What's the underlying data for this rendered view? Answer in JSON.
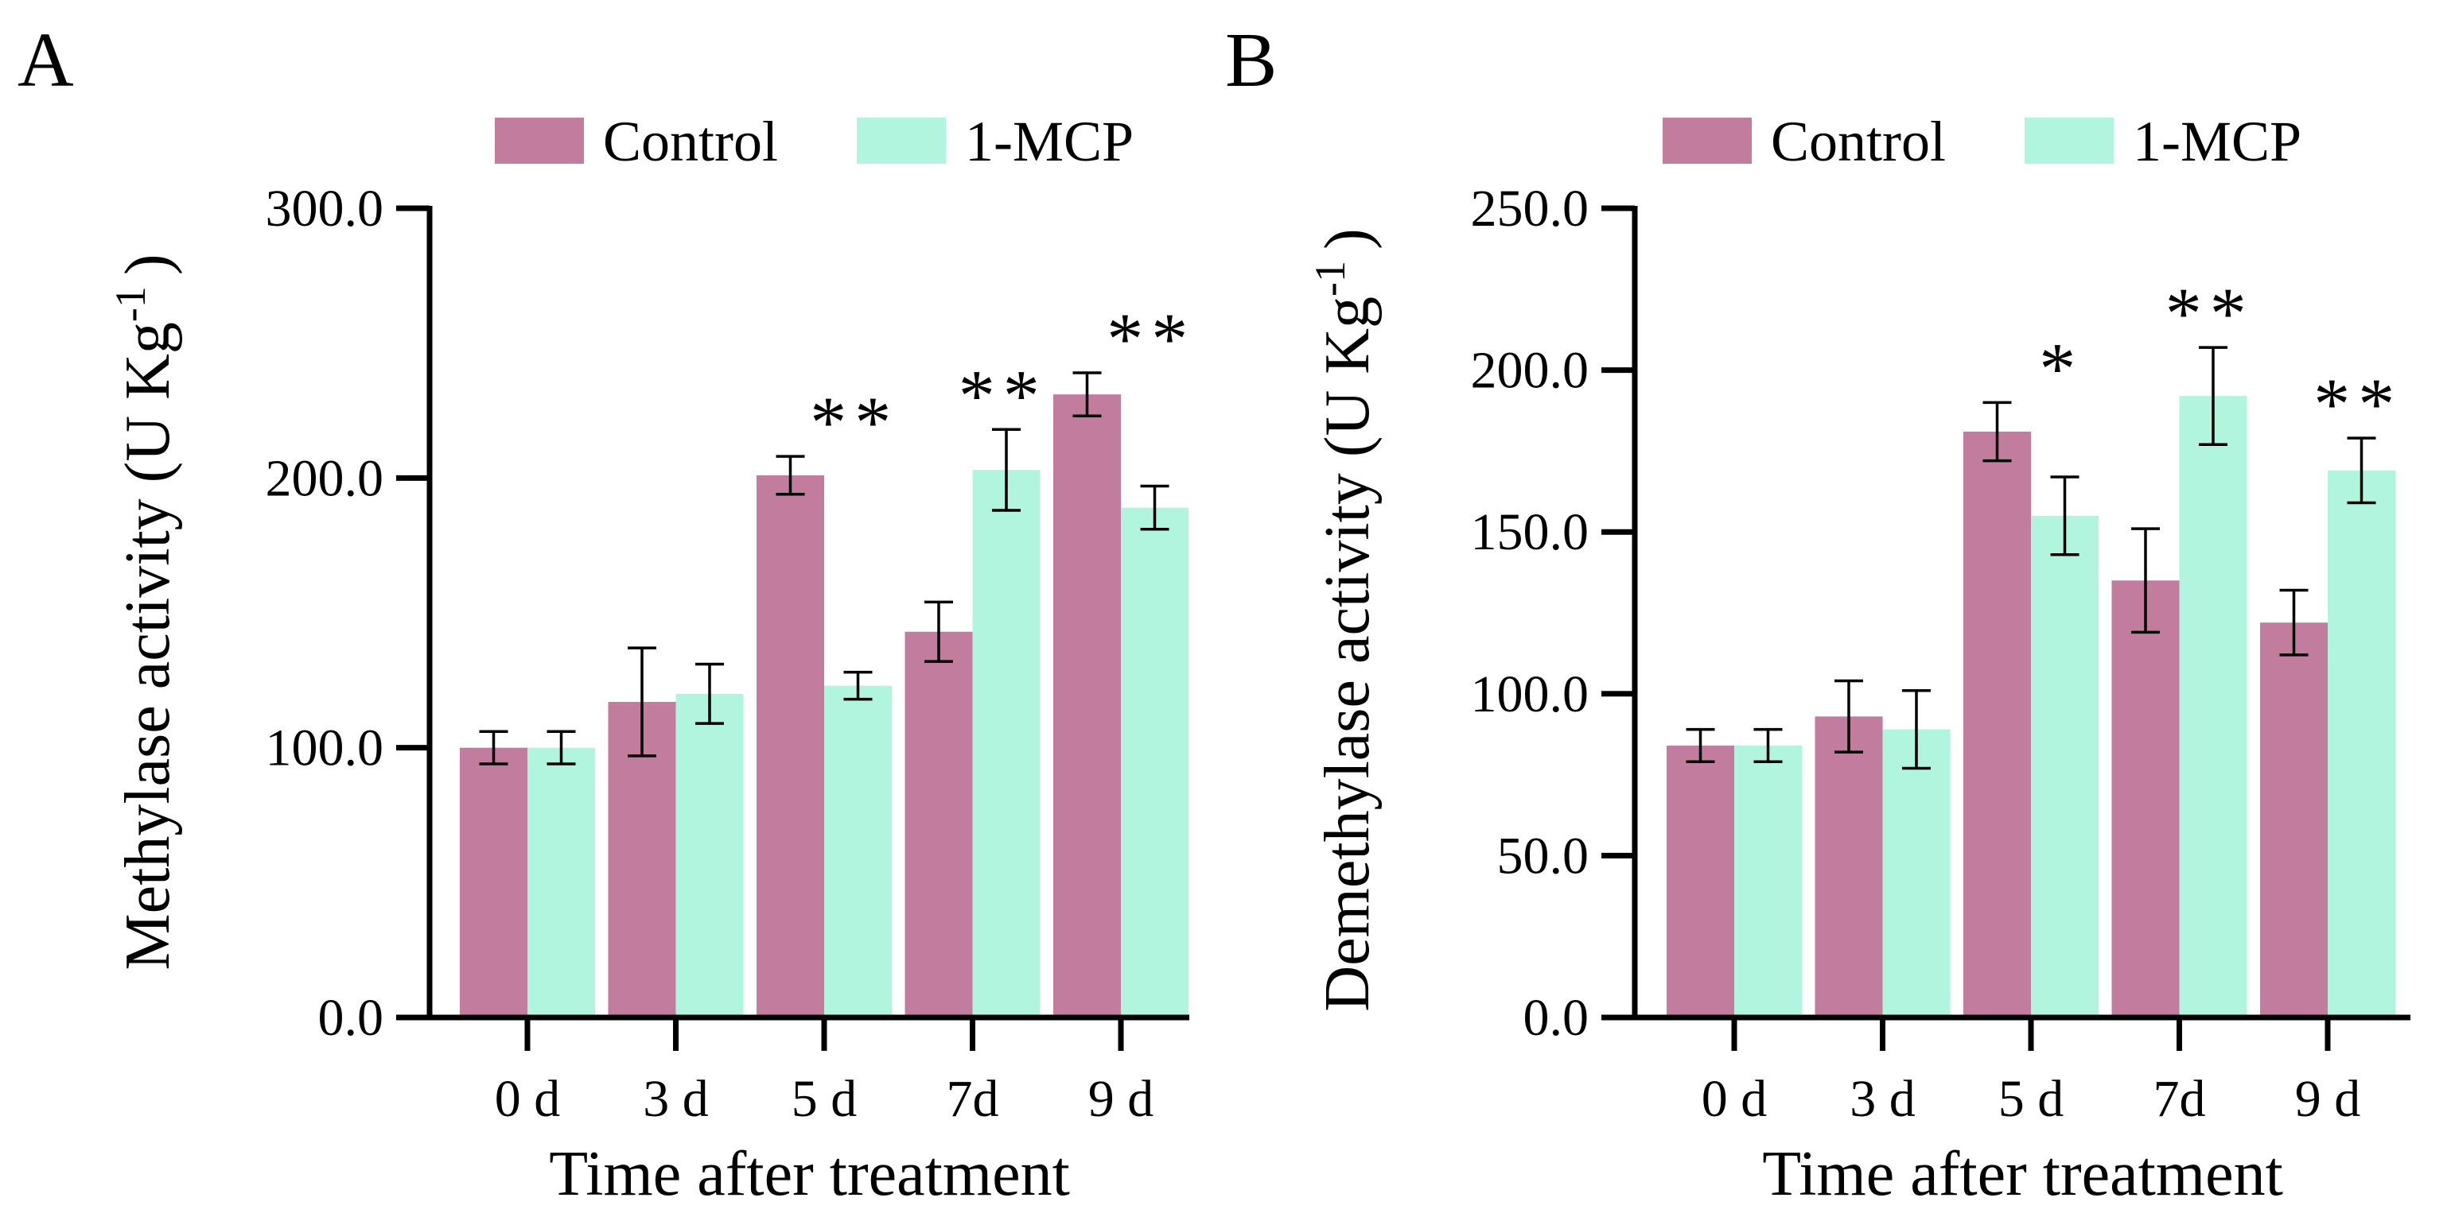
{
  "colors": {
    "control": "#c27d9e",
    "mcp": "#b1f5df",
    "axis": "#000000"
  },
  "chart_data": [
    {
      "panel_label": "A",
      "type": "bar",
      "xlabel": "Time after treatment",
      "ylabel": "Methylase activity (U Kg",
      "ylabel_sup": "-1",
      "ylabel_close": ")",
      "categories": [
        "0 d",
        "3 d",
        "5 d",
        "7d",
        "9 d"
      ],
      "ylim": [
        0,
        300
      ],
      "yticks": [
        0,
        100,
        200,
        300
      ],
      "ytick_labels": [
        "0.0",
        "100.0",
        "200.0",
        "300.0"
      ],
      "legend": [
        "Control",
        "1-MCP"
      ],
      "legend_position": "top",
      "series": [
        {
          "name": "Control",
          "values": [
            100,
            117,
            201,
            143,
            231
          ],
          "errors": [
            6,
            20,
            7,
            11,
            8
          ]
        },
        {
          "name": "1-MCP",
          "values": [
            100,
            120,
            123,
            203,
            189
          ],
          "errors": [
            6,
            11,
            5,
            15,
            8
          ]
        }
      ],
      "significance": [
        "",
        "",
        "**",
        "**",
        "**"
      ]
    },
    {
      "panel_label": "B",
      "type": "bar",
      "xlabel": "Time after treatment",
      "ylabel": "Demethylase activity (U Kg",
      "ylabel_sup": "-1",
      "ylabel_close": ")",
      "categories": [
        "0 d",
        "3 d",
        "5 d",
        "7d",
        "9 d"
      ],
      "ylim": [
        0,
        250
      ],
      "yticks": [
        0,
        50,
        100,
        150,
        200,
        250
      ],
      "ytick_labels": [
        "0.0",
        "50.0",
        "100.0",
        "150.0",
        "200.0",
        "250.0"
      ],
      "legend": [
        "Control",
        "1-MCP"
      ],
      "legend_position": "top",
      "series": [
        {
          "name": "Control",
          "values": [
            84,
            93,
            181,
            135,
            122
          ],
          "errors": [
            5,
            11,
            9,
            16,
            10
          ]
        },
        {
          "name": "1-MCP",
          "values": [
            84,
            89,
            155,
            192,
            169
          ],
          "errors": [
            5,
            12,
            12,
            15,
            10
          ]
        }
      ],
      "significance": [
        "",
        "",
        "*",
        "**",
        "**"
      ]
    }
  ]
}
